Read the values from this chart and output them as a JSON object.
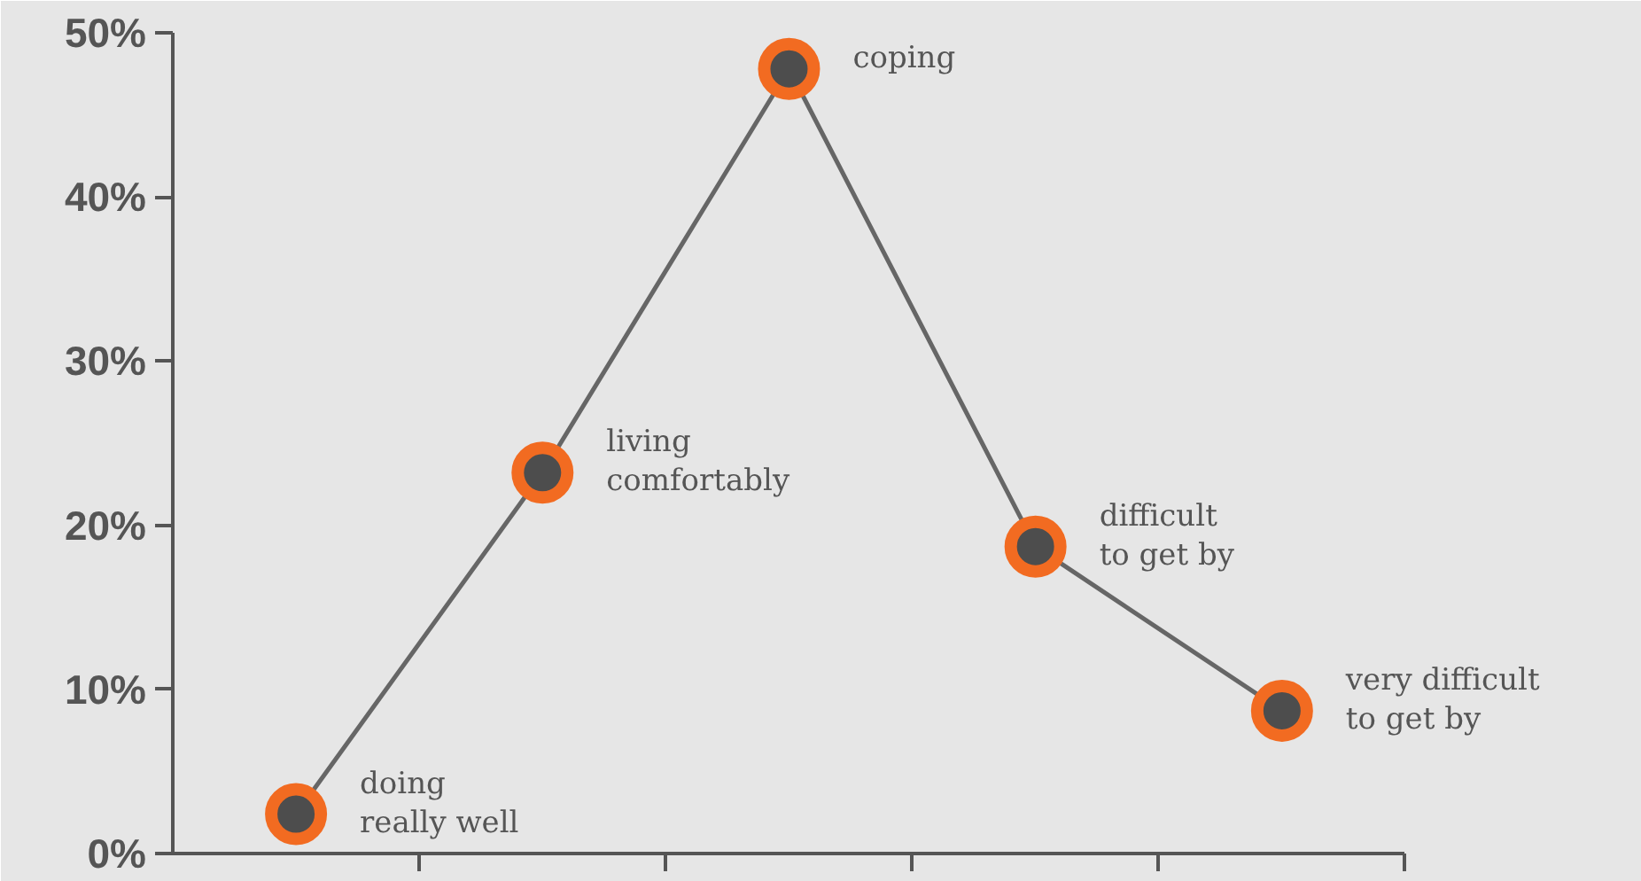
{
  "chart_data": {
    "type": "line",
    "categories": [
      null,
      null,
      null,
      null,
      null
    ],
    "annotations": [
      "doing\nreally well",
      "living\ncomfortably",
      "coping",
      "difficult\nto get by",
      "very difficult\nto get by"
    ],
    "series": [
      {
        "color": "#666666",
        "values": [
          2.4,
          23.2,
          47.8,
          18.7,
          8.7
        ]
      }
    ],
    "ylim": [
      0,
      50
    ],
    "yticks": [
      {
        "value": 0,
        "label": "0%"
      },
      {
        "value": 10,
        "label": "10%"
      },
      {
        "value": 20,
        "label": "20%"
      },
      {
        "value": 30,
        "label": "30%"
      },
      {
        "value": 40,
        "label": "40%"
      },
      {
        "value": 50,
        "label": "50%"
      }
    ],
    "tick_labels": "y",
    "marker": "circle",
    "line_style": "solid"
  }
}
